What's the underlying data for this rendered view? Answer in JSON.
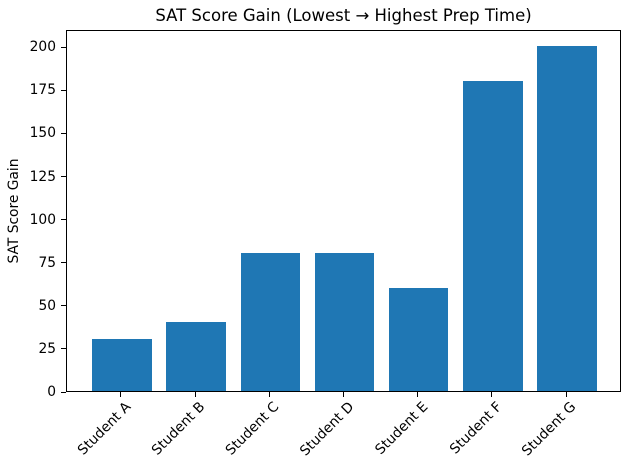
{
  "chart_data": {
    "type": "bar",
    "title": "SAT Score Gain (Lowest → Highest Prep Time)",
    "xlabel": "",
    "ylabel": "SAT Score Gain",
    "categories": [
      "Student A",
      "Student B",
      "Student C",
      "Student D",
      "Student E",
      "Student F",
      "Student G"
    ],
    "values": [
      30,
      40,
      80,
      80,
      60,
      180,
      200
    ],
    "yticks": [
      0,
      25,
      50,
      75,
      100,
      125,
      150,
      175,
      200
    ],
    "ylim": [
      0,
      210
    ],
    "bar_color": "#1f77b4",
    "grid": false,
    "legend_position": "none",
    "x_tick_rotation_deg": 45
  }
}
